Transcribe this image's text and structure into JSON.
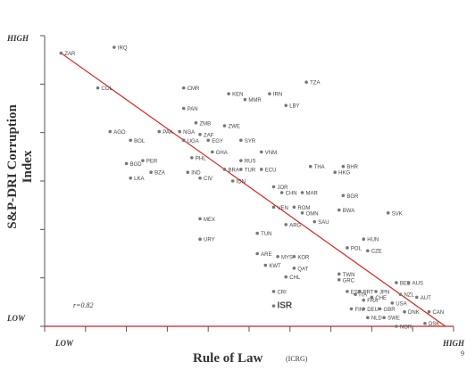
{
  "chart_data": {
    "type": "scatter",
    "xlabel": "Rule of Law",
    "xlabel_sub": "(ICRG)",
    "ylabel": "S&P-DRI Corruption Index",
    "x_low_label": "LOW",
    "x_high_label": "HIGH",
    "y_low_label": "LOW",
    "y_high_label": "HIGH",
    "correlation": "r=0.82",
    "page_number": "9",
    "xlim": [
      0,
      100
    ],
    "ylim": [
      0,
      100
    ],
    "grid": false,
    "trendline": {
      "x1": 4,
      "y1": 94,
      "x2": 98,
      "y2": 0
    },
    "points": [
      {
        "label": "ZAR",
        "x": 4,
        "y": 94
      },
      {
        "label": "IRQ",
        "x": 17,
        "y": 96
      },
      {
        "label": "COL",
        "x": 13,
        "y": 82
      },
      {
        "label": "CMR",
        "x": 34,
        "y": 82
      },
      {
        "label": "KEN",
        "x": 45,
        "y": 80
      },
      {
        "label": "IRN",
        "x": 55,
        "y": 80
      },
      {
        "label": "TZA",
        "x": 64,
        "y": 84
      },
      {
        "label": "MMR",
        "x": 49,
        "y": 78
      },
      {
        "label": "LBY",
        "x": 59,
        "y": 76
      },
      {
        "label": "PAN",
        "x": 34,
        "y": 75
      },
      {
        "label": "ZMB",
        "x": 37,
        "y": 70
      },
      {
        "label": "ZWE",
        "x": 44,
        "y": 69
      },
      {
        "label": "PAK",
        "x": 28,
        "y": 67
      },
      {
        "label": "NGA",
        "x": 33,
        "y": 67
      },
      {
        "label": "ZAF",
        "x": 38,
        "y": 66
      },
      {
        "label": "AGO",
        "x": 16,
        "y": 67
      },
      {
        "label": "BOL",
        "x": 21,
        "y": 64
      },
      {
        "label": "UGA",
        "x": 34,
        "y": 64
      },
      {
        "label": "EGY",
        "x": 40,
        "y": 64
      },
      {
        "label": "SYR",
        "x": 48,
        "y": 64
      },
      {
        "label": "GHA",
        "x": 41,
        "y": 60
      },
      {
        "label": "VNM",
        "x": 53,
        "y": 60
      },
      {
        "label": "PHL",
        "x": 36,
        "y": 58
      },
      {
        "label": "PER",
        "x": 24,
        "y": 57
      },
      {
        "label": "BGD",
        "x": 20,
        "y": 56
      },
      {
        "label": "RUS",
        "x": 48,
        "y": 57
      },
      {
        "label": "BRA",
        "x": 44,
        "y": 54
      },
      {
        "label": "TUR",
        "x": 48,
        "y": 54
      },
      {
        "label": "ECU",
        "x": 53,
        "y": 54
      },
      {
        "label": "THA",
        "x": 65,
        "y": 55
      },
      {
        "label": "BHR",
        "x": 73,
        "y": 55
      },
      {
        "label": "HKG",
        "x": 71,
        "y": 53
      },
      {
        "label": "IND",
        "x": 35,
        "y": 53
      },
      {
        "label": "BZA",
        "x": 26,
        "y": 53
      },
      {
        "label": "LKA",
        "x": 21,
        "y": 51
      },
      {
        "label": "CIV",
        "x": 38,
        "y": 51
      },
      {
        "label": "IDN",
        "x": 46,
        "y": 50
      },
      {
        "label": "JOR",
        "x": 56,
        "y": 48
      },
      {
        "label": "CHN",
        "x": 58,
        "y": 46
      },
      {
        "label": "MAR",
        "x": 63,
        "y": 46
      },
      {
        "label": "BGR",
        "x": 73,
        "y": 45
      },
      {
        "label": "VEN",
        "x": 56,
        "y": 41
      },
      {
        "label": "ROM",
        "x": 61,
        "y": 41
      },
      {
        "label": "OMN",
        "x": 63,
        "y": 39
      },
      {
        "label": "BWA",
        "x": 72,
        "y": 40
      },
      {
        "label": "SAU",
        "x": 66,
        "y": 36
      },
      {
        "label": "SVK",
        "x": 84,
        "y": 39
      },
      {
        "label": "MEX",
        "x": 38,
        "y": 37
      },
      {
        "label": "ARG",
        "x": 59,
        "y": 35
      },
      {
        "label": "TUN",
        "x": 52,
        "y": 32
      },
      {
        "label": "URY",
        "x": 38,
        "y": 30
      },
      {
        "label": "HUN",
        "x": 78,
        "y": 30
      },
      {
        "label": "POL",
        "x": 74,
        "y": 27
      },
      {
        "label": "CZE",
        "x": 79,
        "y": 26
      },
      {
        "label": "ARE",
        "x": 52,
        "y": 25
      },
      {
        "label": "MYS",
        "x": 57,
        "y": 24
      },
      {
        "label": "KOR",
        "x": 61,
        "y": 24
      },
      {
        "label": "KWT",
        "x": 54,
        "y": 21
      },
      {
        "label": "QAT",
        "x": 61,
        "y": 20
      },
      {
        "label": "TWN",
        "x": 72,
        "y": 18
      },
      {
        "label": "CHL",
        "x": 59,
        "y": 17
      },
      {
        "label": "GRC",
        "x": 72,
        "y": 16
      },
      {
        "label": "BEL",
        "x": 86,
        "y": 15
      },
      {
        "label": "AUS",
        "x": 89,
        "y": 15
      },
      {
        "label": "CRI",
        "x": 56,
        "y": 12
      },
      {
        "label": "ESP",
        "x": 74,
        "y": 12
      },
      {
        "label": "PRT",
        "x": 77,
        "y": 12
      },
      {
        "label": "JPN",
        "x": 81,
        "y": 12
      },
      {
        "label": "NZL",
        "x": 87,
        "y": 11
      },
      {
        "label": "ITA",
        "x": 76,
        "y": 11
      },
      {
        "label": "CHE",
        "x": 80,
        "y": 10
      },
      {
        "label": "AUT",
        "x": 91,
        "y": 10
      },
      {
        "label": "FRA",
        "x": 78,
        "y": 9
      },
      {
        "label": "USA",
        "x": 85,
        "y": 8
      },
      {
        "label": "ISR",
        "x": 56,
        "y": 7
      },
      {
        "label": "FIN",
        "x": 75,
        "y": 6
      },
      {
        "label": "DEU",
        "x": 78,
        "y": 6
      },
      {
        "label": "GBR",
        "x": 82,
        "y": 6
      },
      {
        "label": "DNK",
        "x": 88,
        "y": 5
      },
      {
        "label": "CAN",
        "x": 94,
        "y": 5
      },
      {
        "label": "NLD",
        "x": 79,
        "y": 3
      },
      {
        "label": "SWE",
        "x": 83,
        "y": 3
      },
      {
        "label": "DSK",
        "x": 93,
        "y": 1
      },
      {
        "label": "NOR",
        "x": 86,
        "y": 0
      }
    ]
  }
}
